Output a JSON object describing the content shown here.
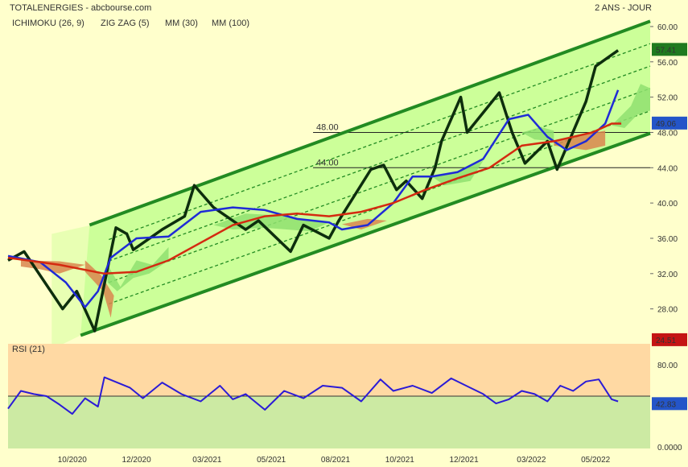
{
  "header": {
    "title": "TOTALENERGIES - abcbourse.com",
    "period": "2 ANS - JOUR"
  },
  "legend": [
    {
      "label": "ICHIMOKU (26, 9)",
      "color": "#cc0000"
    },
    {
      "label": "ZIG ZAG (5)",
      "color": "#000000"
    },
    {
      "label": "MM (30)",
      "color": "#0000cc"
    },
    {
      "label": "MM (100)",
      "color": "#cc0000"
    }
  ],
  "colors": {
    "background": "#ffffcc",
    "channel_fill": "#ccff99",
    "channel_line": "#228b22",
    "zigzag": "#0d2e0d",
    "mm30": "#1f2bd6",
    "mm100": "#d42a10",
    "kumo_bull": "#8fe070",
    "kumo_bear": "#d9864f",
    "rsi_line": "#2b1bd6",
    "rsi_upper_zone": "#ffd9a3",
    "rsi_lower_zone": "#cceaa3",
    "badge_green": "#1f7a1f",
    "badge_blue": "#2455c8",
    "badge_red": "#c41414"
  },
  "chart_data": [
    {
      "type": "line",
      "title": "TOTALENERGIES",
      "y_axis_ticks": [
        "60.00",
        "56.00",
        "52.00",
        "48.00",
        "44.00",
        "40.00",
        "36.00",
        "32.00",
        "28.00"
      ],
      "ylim": [
        24.5,
        61.0
      ],
      "x_axis_ticks": [
        "10/2020",
        "12/2020",
        "03/2021",
        "05/2021",
        "08/2021",
        "10/2021",
        "12/2021",
        "03/2022",
        "05/2022"
      ],
      "price_badges": [
        {
          "label": "57.41",
          "value": 57.41,
          "style": "green"
        },
        {
          "label": "49.06",
          "value": 49.06,
          "style": "blue"
        },
        {
          "label": "24.51",
          "value": 24.51,
          "style": "red"
        }
      ],
      "horizontal_levels": [
        {
          "label": "48.00",
          "value": 48.0
        },
        {
          "label": "44.00",
          "value": 44.0
        }
      ],
      "channel": {
        "lower": [
          [
            0.113,
            25.0
          ],
          [
            1.0,
            47.9
          ]
        ],
        "upper": [
          [
            0.127,
            37.5
          ],
          [
            1.0,
            60.6
          ]
        ],
        "inner_lines": 4
      },
      "series": [
        {
          "name": "ZIG ZAG (5)",
          "x": [
            0.0,
            0.025,
            0.085,
            0.107,
            0.135,
            0.168,
            0.185,
            0.195,
            0.24,
            0.275,
            0.29,
            0.32,
            0.37,
            0.39,
            0.44,
            0.46,
            0.5,
            0.515,
            0.565,
            0.585,
            0.605,
            0.62,
            0.645,
            0.665,
            0.675,
            0.705,
            0.715,
            0.765,
            0.785,
            0.805,
            0.84,
            0.855,
            0.9,
            0.915,
            0.95
          ],
          "y": [
            33.5,
            34.5,
            28.0,
            30.0,
            25.5,
            37.2,
            36.5,
            34.7,
            37.0,
            38.5,
            42.0,
            39.5,
            37.0,
            38.0,
            34.5,
            37.5,
            36.0,
            38.0,
            43.8,
            44.3,
            41.5,
            42.5,
            40.5,
            44.0,
            47.0,
            52.0,
            48.0,
            52.5,
            48.0,
            44.5,
            47.0,
            43.8,
            51.5,
            55.5,
            57.3
          ]
        },
        {
          "name": "MM (30)",
          "x": [
            0.0,
            0.05,
            0.09,
            0.12,
            0.14,
            0.16,
            0.2,
            0.25,
            0.3,
            0.35,
            0.4,
            0.45,
            0.5,
            0.52,
            0.56,
            0.6,
            0.63,
            0.66,
            0.7,
            0.74,
            0.78,
            0.81,
            0.84,
            0.87,
            0.9,
            0.93,
            0.95
          ],
          "y": [
            34.0,
            33.3,
            31.0,
            28.2,
            30.0,
            33.8,
            36.0,
            36.2,
            39.0,
            39.5,
            39.2,
            38.2,
            37.8,
            37.0,
            37.5,
            40.0,
            43.0,
            43.0,
            43.5,
            45.0,
            49.5,
            50.0,
            47.5,
            46.0,
            47.0,
            49.0,
            52.8
          ]
        },
        {
          "name": "MM (100)",
          "x": [
            0.0,
            0.08,
            0.15,
            0.2,
            0.25,
            0.3,
            0.35,
            0.4,
            0.45,
            0.5,
            0.55,
            0.6,
            0.65,
            0.7,
            0.75,
            0.8,
            0.85,
            0.88,
            0.91,
            0.94,
            0.955
          ],
          "y": [
            33.8,
            33.0,
            32.0,
            32.2,
            33.5,
            35.5,
            37.5,
            38.5,
            38.8,
            38.5,
            39.0,
            40.0,
            41.5,
            42.8,
            44.0,
            46.5,
            47.0,
            47.5,
            48.0,
            49.0,
            49.0
          ]
        }
      ]
    },
    {
      "type": "line",
      "title": "RSI (21)",
      "y_axis_ticks": [
        "80.00",
        "40.00",
        "0.0000"
      ],
      "ylim": [
        0,
        100
      ],
      "reference_line": 50,
      "badge": {
        "label": "42.83",
        "value": 42.83
      },
      "series": [
        {
          "name": "RSI (21)",
          "x": [
            0.0,
            0.02,
            0.04,
            0.06,
            0.08,
            0.1,
            0.12,
            0.14,
            0.15,
            0.17,
            0.19,
            0.21,
            0.24,
            0.27,
            0.3,
            0.33,
            0.35,
            0.37,
            0.4,
            0.43,
            0.46,
            0.49,
            0.52,
            0.55,
            0.58,
            0.6,
            0.63,
            0.66,
            0.69,
            0.72,
            0.74,
            0.76,
            0.78,
            0.8,
            0.82,
            0.84,
            0.86,
            0.88,
            0.9,
            0.92,
            0.94,
            0.95
          ],
          "y": [
            38,
            55,
            52,
            50,
            42,
            33,
            48,
            40,
            68,
            63,
            58,
            48,
            63,
            52,
            45,
            60,
            47,
            52,
            37,
            55,
            48,
            60,
            58,
            45,
            66,
            55,
            60,
            53,
            67,
            58,
            52,
            43,
            47,
            55,
            52,
            45,
            60,
            55,
            64,
            66,
            47,
            45
          ]
        }
      ]
    }
  ]
}
